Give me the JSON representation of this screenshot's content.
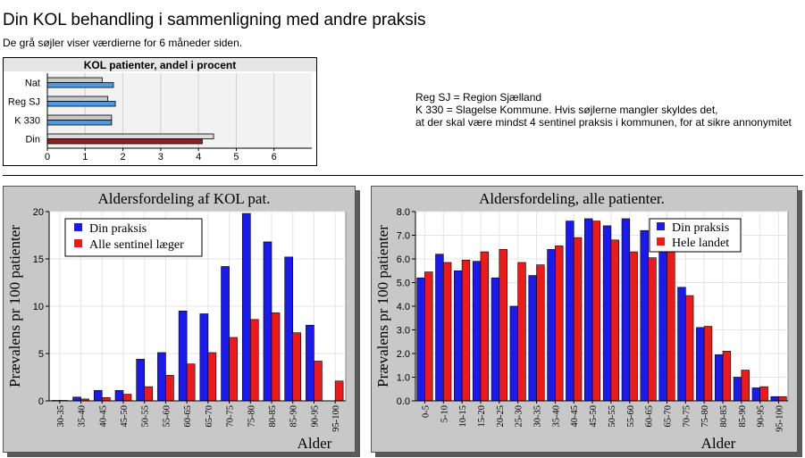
{
  "header": {
    "title": "Din KOL behandling i sammenligning med andre praksis",
    "subtitle": "De grå søjler viser værdierne for 6 måneder siden."
  },
  "notes": [
    "Reg SJ = Region Sjælland",
    "K 330 = Slagelse Kommune. Hvis søjlerne mangler skyldes det,",
    "at der skal være mindst 4 sentinel praksis i kommunen, for at sikre annonymitet"
  ],
  "colors": {
    "blue": "#1a1aee",
    "red": "#ee1a1a",
    "light_blue": "#4d9be6",
    "dark_red": "#8c2323",
    "gray": "#c8c8c8"
  },
  "chart_data": [
    {
      "type": "bar",
      "orientation": "horizontal",
      "title": "KOL patienter, andel i procent",
      "categories": [
        "Nat",
        "Reg SJ",
        "K 330",
        "Din"
      ],
      "series": [
        {
          "values": [
            1.45,
            1.6,
            1.7,
            4.4
          ]
        },
        {
          "values": [
            1.75,
            1.8,
            1.7,
            4.1
          ]
        }
      ],
      "xlim": [
        0,
        7
      ],
      "xticks": [
        "0",
        "1",
        "2",
        "3",
        "4",
        "5",
        "6"
      ],
      "grid": true
    },
    {
      "type": "bar",
      "title": "Aldersfordeling af KOL pat.",
      "xlabel": "Alder",
      "ylabel": "Prævalens pr 100 patienter",
      "categories": [
        "30-35",
        "35-40",
        "40-45",
        "45-50",
        "50-55",
        "55-60",
        "60-65",
        "65-70",
        "70-75",
        "75-80",
        "80-85",
        "85-90",
        "90-95",
        "95-100"
      ],
      "series": [
        {
          "name": "Din praksis",
          "values": [
            0.05,
            0.4,
            1.1,
            1.1,
            4.4,
            5.1,
            9.5,
            9.2,
            14.2,
            19.8,
            16.8,
            15.2,
            8.0,
            0.0
          ]
        },
        {
          "name": "Alle sentinel læger",
          "values": [
            0.05,
            0.2,
            0.35,
            0.7,
            1.5,
            2.7,
            3.9,
            5.1,
            6.7,
            8.6,
            9.3,
            7.2,
            4.2,
            2.1
          ]
        }
      ],
      "ylim": [
        0,
        20
      ],
      "yticks": [
        "0",
        "5",
        "10",
        "15",
        "20"
      ],
      "grid": true,
      "legend": "top-left"
    },
    {
      "type": "bar",
      "title": "Aldersfordeling, alle patienter.",
      "xlabel": "Alder",
      "ylabel": "Prævalens pr 100 patienter",
      "categories": [
        "0-5",
        "5-10",
        "10-15",
        "15-20",
        "20-25",
        "25-30",
        "30-35",
        "35-40",
        "40-45",
        "45-50",
        "50-55",
        "55-60",
        "60-65",
        "65-70",
        "70-75",
        "75-80",
        "80-85",
        "85-90",
        "90-95",
        "95-100"
      ],
      "series": [
        {
          "name": "Din praksis",
          "values": [
            5.2,
            6.2,
            5.5,
            5.9,
            5.2,
            4.0,
            5.3,
            6.4,
            7.6,
            7.7,
            7.4,
            7.7,
            7.2,
            7.4,
            4.8,
            3.1,
            1.95,
            1.0,
            0.55,
            0.18
          ]
        },
        {
          "name": "Hele landet",
          "values": [
            5.45,
            5.85,
            5.95,
            6.3,
            6.4,
            5.85,
            5.75,
            6.55,
            6.9,
            7.6,
            6.8,
            6.3,
            6.05,
            6.3,
            4.45,
            3.15,
            2.1,
            1.3,
            0.6,
            0.18
          ]
        }
      ],
      "ylim": [
        0,
        8
      ],
      "yticks": [
        "0.0",
        "1.0",
        "2.0",
        "3.0",
        "4.0",
        "5.0",
        "6.0",
        "7.0",
        "8.0"
      ],
      "grid": true,
      "legend": "top-right"
    }
  ]
}
